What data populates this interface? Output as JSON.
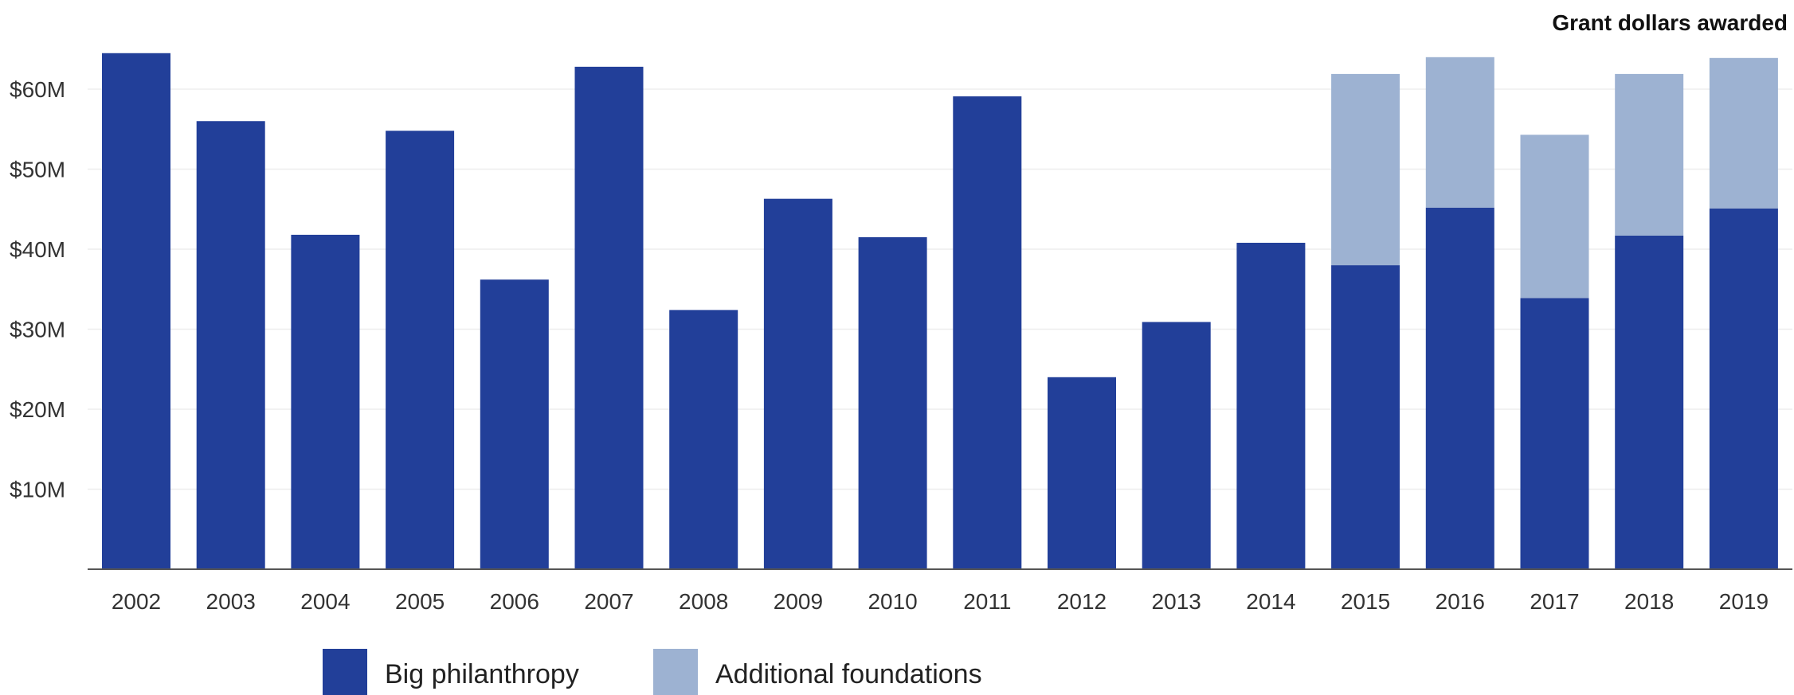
{
  "chart_data": {
    "type": "bar",
    "stacked": true,
    "title": "Grant dollars awarded",
    "categories": [
      "2002",
      "2003",
      "2004",
      "2005",
      "2006",
      "2007",
      "2008",
      "2009",
      "2010",
      "2011",
      "2012",
      "2013",
      "2014",
      "2015",
      "2016",
      "2017",
      "2018",
      "2019"
    ],
    "series": [
      {
        "name": "Big philanthropy",
        "color": "#223f99",
        "values": [
          64.5,
          56,
          41.8,
          54.8,
          36.2,
          62.8,
          32.4,
          46.3,
          41.5,
          59.1,
          24,
          30.9,
          40.8,
          38,
          45.2,
          33.9,
          41.7,
          45.1
        ]
      },
      {
        "name": "Additional foundations",
        "color": "#9db2d2",
        "values": [
          0,
          0,
          0,
          0,
          0,
          0,
          0,
          0,
          0,
          0,
          0,
          0,
          0,
          23.9,
          18.8,
          20.4,
          20.2,
          18.8
        ]
      }
    ],
    "y_ticks": [
      "$10M",
      "$20M",
      "$30M",
      "$40M",
      "$50M",
      "$60M"
    ],
    "y_tick_values": [
      10,
      20,
      30,
      40,
      50,
      60
    ],
    "ylim": [
      0,
      65
    ],
    "xlabel": "",
    "ylabel": "",
    "grid": true,
    "legend_position": "bottom"
  }
}
